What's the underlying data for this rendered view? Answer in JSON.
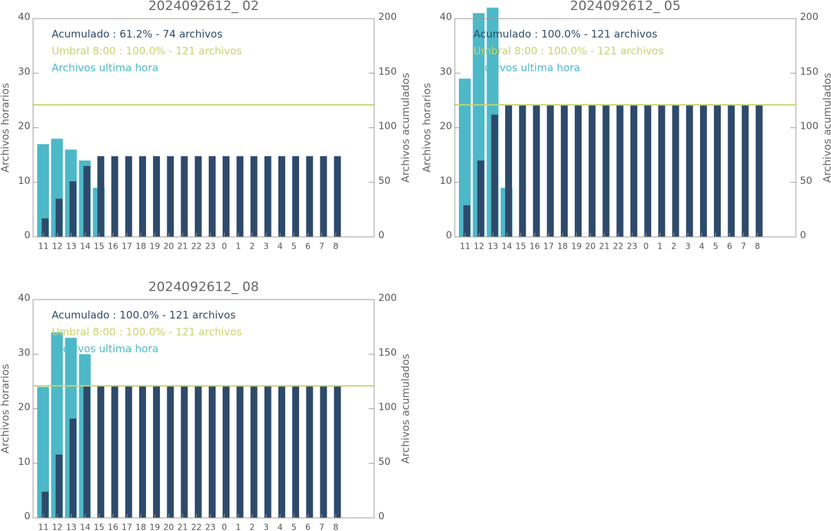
{
  "chart_data": [
    {
      "type": "bar",
      "title": "2024092612_ 02",
      "categories": [
        "11",
        "12",
        "13",
        "14",
        "15",
        "16",
        "17",
        "18",
        "19",
        "20",
        "21",
        "22",
        "23",
        "0",
        "1",
        "2",
        "3",
        "4",
        "5",
        "6",
        "7",
        "8"
      ],
      "series": [
        {
          "name": "Acumulado : 61.2% - 74 archivos",
          "color": "#2e4a6b",
          "axis": "y2",
          "values": [
            17,
            35,
            51,
            65,
            74,
            74,
            74,
            74,
            74,
            74,
            74,
            74,
            74,
            74,
            74,
            74,
            74,
            74,
            74,
            74,
            74,
            74
          ]
        },
        {
          "name": "Archivos ultima hora",
          "color": "#4db8c8",
          "values": [
            17,
            18,
            16,
            14,
            9,
            null,
            null,
            null,
            null,
            null,
            null,
            null,
            null,
            null,
            null,
            null,
            null,
            null,
            null,
            null,
            null,
            null
          ]
        }
      ],
      "threshold": {
        "name": "Umbral 8:00 : 100.0% - 121 archivos",
        "value": 121,
        "color": "#c8d46a",
        "axis": "y2"
      },
      "ylabel": "Archivos horarios",
      "y2label": "Archivos acumulados",
      "ylim": [
        0,
        40
      ],
      "yticks": [
        0,
        10,
        20,
        30,
        40
      ],
      "y2lim": [
        0,
        200
      ],
      "y2ticks": [
        0,
        50,
        100,
        150,
        200
      ]
    },
    {
      "type": "bar",
      "title": "2024092612_ 05",
      "categories": [
        "11",
        "12",
        "13",
        "14",
        "15",
        "16",
        "17",
        "18",
        "19",
        "20",
        "21",
        "22",
        "23",
        "0",
        "1",
        "2",
        "3",
        "4",
        "5",
        "6",
        "7",
        "8"
      ],
      "series": [
        {
          "name": "Acumulado : 100.0% - 121 archivos",
          "color": "#2e4a6b",
          "axis": "y2",
          "values": [
            29,
            70,
            112,
            121,
            121,
            121,
            121,
            121,
            121,
            121,
            121,
            121,
            121,
            121,
            121,
            121,
            121,
            121,
            121,
            121,
            121,
            121
          ]
        },
        {
          "name": "Archivos ultima hora",
          "color": "#4db8c8",
          "values": [
            29,
            41,
            42,
            9,
            null,
            null,
            null,
            null,
            null,
            null,
            null,
            null,
            null,
            null,
            null,
            null,
            null,
            null,
            null,
            null,
            null,
            null
          ]
        }
      ],
      "threshold": {
        "name": "Umbral 8:00 : 100.0% - 121 archivos",
        "value": 121,
        "color": "#c8d46a",
        "axis": "y2"
      },
      "ylabel": "Archivos horarios",
      "y2label": "Archivos acumulados",
      "ylim": [
        0,
        40
      ],
      "yticks": [
        0,
        10,
        20,
        30,
        40
      ],
      "y2lim": [
        0,
        200
      ],
      "y2ticks": [
        0,
        50,
        100,
        150,
        200
      ]
    },
    {
      "type": "bar",
      "title": "2024092612_ 08",
      "categories": [
        "11",
        "12",
        "13",
        "14",
        "15",
        "16",
        "17",
        "18",
        "19",
        "20",
        "21",
        "22",
        "23",
        "0",
        "1",
        "2",
        "3",
        "4",
        "5",
        "6",
        "7",
        "8"
      ],
      "series": [
        {
          "name": "Acumulado : 100.0% - 121 archivos",
          "color": "#2e4a6b",
          "axis": "y2",
          "values": [
            24,
            58,
            91,
            121,
            121,
            121,
            121,
            121,
            121,
            121,
            121,
            121,
            121,
            121,
            121,
            121,
            121,
            121,
            121,
            121,
            121,
            121
          ]
        },
        {
          "name": "Archivos ultima hora",
          "color": "#4db8c8",
          "values": [
            24,
            34,
            33,
            30,
            null,
            null,
            null,
            null,
            null,
            null,
            null,
            null,
            null,
            null,
            null,
            null,
            null,
            null,
            null,
            null,
            null,
            null
          ]
        }
      ],
      "threshold": {
        "name": "Umbral 8:00 : 100.0% - 121 archivos",
        "value": 121,
        "color": "#c8d46a",
        "axis": "y2"
      },
      "ylabel": "Archivos horarios",
      "y2label": "Archivos acumulados",
      "ylim": [
        0,
        40
      ],
      "yticks": [
        0,
        10,
        20,
        30,
        40
      ],
      "y2lim": [
        0,
        200
      ],
      "y2ticks": [
        0,
        50,
        100,
        150,
        200
      ]
    }
  ]
}
